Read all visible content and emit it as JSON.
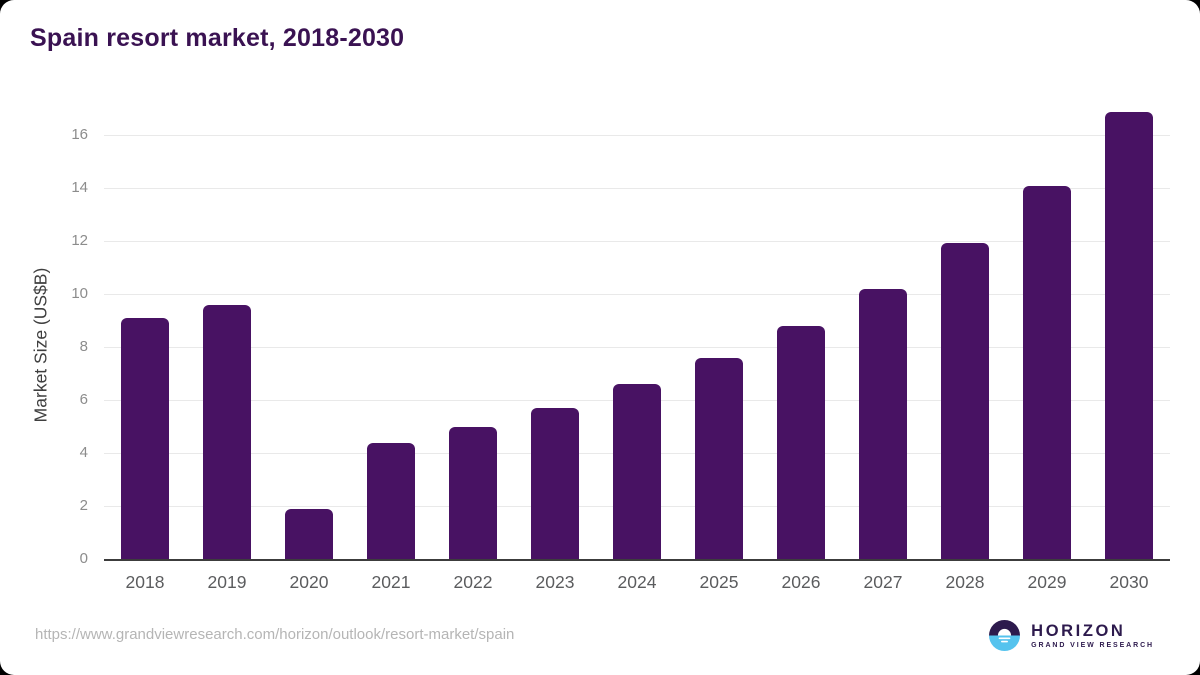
{
  "page": {
    "title": "Spain resort market, 2018-2030"
  },
  "chart_data": {
    "type": "bar",
    "title": "Spain resort market, 2018-2030",
    "categories": [
      "2018",
      "2019",
      "2020",
      "2021",
      "2022",
      "2023",
      "2024",
      "2025",
      "2026",
      "2027",
      "2028",
      "2029",
      "2030"
    ],
    "values": [
      9.1,
      9.6,
      1.9,
      4.4,
      5.0,
      5.7,
      6.6,
      7.6,
      8.8,
      10.2,
      11.95,
      14.1,
      16.9
    ],
    "xlabel": "",
    "ylabel": "Market Size (US$B)",
    "ylim": [
      0,
      17.6
    ],
    "yticks": [
      0,
      2,
      4,
      6,
      8,
      10,
      12,
      14,
      16
    ],
    "grid": true,
    "legend": "none",
    "bar_color": "#481263"
  },
  "footer": {
    "source_url": "https://www.grandviewresearch.com/horizon/outlook/resort-market/spain",
    "logo": {
      "brand": "HORIZON",
      "tagline": "GRAND VIEW RESEARCH"
    }
  },
  "colors": {
    "title": "#3a1252",
    "bar": "#481263",
    "gridline": "#e9e9e9",
    "axis_line": "#3c3c3c",
    "y_tick_text": "#8c8c8c",
    "x_tick_text": "#5b5c5e",
    "y_axis_label": "#3f3f3f",
    "url_text": "#b5b5b5",
    "logo_purple": "#2d1a4d",
    "logo_blue": "#55c3ee"
  }
}
